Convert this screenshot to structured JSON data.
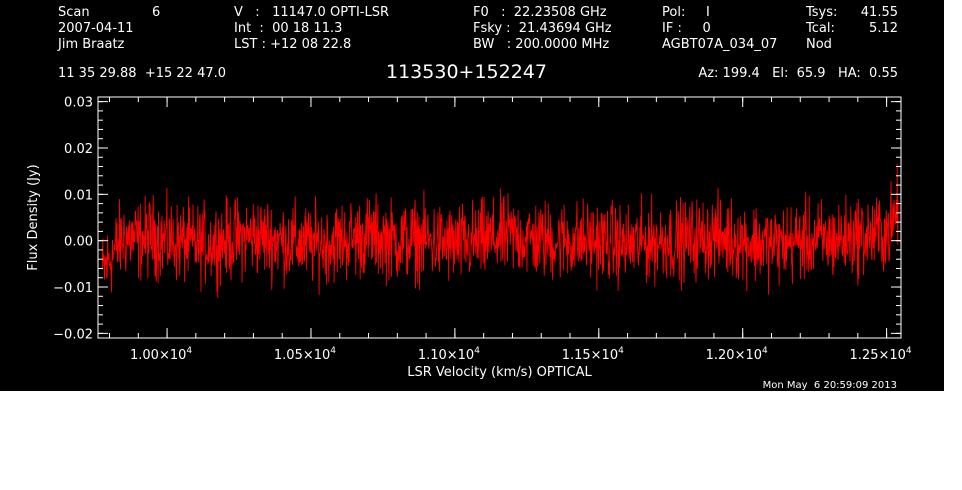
{
  "header": {
    "scan_label": "Scan",
    "scan_value": "6",
    "date": "2007-04-11",
    "observer": "Jim Braatz",
    "velocity": "V   :   11147.0 OPTI-LSR",
    "int_time": "Int  :  00 18 11.3",
    "lst": "LST : +12 08 22.8",
    "f0": "F0   :  22.23508 GHz",
    "fsky": "Fsky :  21.43694 GHz",
    "bw": "BW   : 200.0000 MHz",
    "pol": "Pol:     I",
    "if": "IF :     0",
    "project": "AGBT07A_034_07",
    "tsys_label": "Tsys:",
    "tsys_value": "41.55",
    "tcal_label": "Tcal:",
    "tcal_value": "5.12",
    "procedure": "Nod",
    "coords": "11 35 29.88  +15 22 47.0",
    "source": "113530+152247",
    "az_el_ha": "Az: 199.4   El:  65.9   HA:  0.55",
    "timestamp": "Mon May  6 20:59:09 2013"
  },
  "colors": {
    "background": "#000000",
    "axes": "#ffffff",
    "trace": "#ff0000"
  },
  "chart_data": {
    "type": "line",
    "xlabel": "LSR Velocity (km/s) OPTICAL",
    "ylabel": "Flux Density (Jy)",
    "xlim": [
      9760,
      12550
    ],
    "ylim": [
      -0.021,
      0.031
    ],
    "x_ticks": [
      {
        "value": 10000,
        "mantissa": "1.00",
        "exponent": "4"
      },
      {
        "value": 10500,
        "mantissa": "1.05",
        "exponent": "4"
      },
      {
        "value": 11000,
        "mantissa": "1.10",
        "exponent": "4"
      },
      {
        "value": 11500,
        "mantissa": "1.15",
        "exponent": "4"
      },
      {
        "value": 12000,
        "mantissa": "1.20",
        "exponent": "4"
      },
      {
        "value": 12500,
        "mantissa": "1.25",
        "exponent": "4"
      }
    ],
    "times_sign": "×10",
    "y_ticks": [
      {
        "value": -0.02,
        "label": "−0.02"
      },
      {
        "value": -0.01,
        "label": "−0.01"
      },
      {
        "value": 0.0,
        "label": "0.00"
      },
      {
        "value": 0.01,
        "label": "0.01"
      },
      {
        "value": 0.02,
        "label": "0.02"
      },
      {
        "value": 0.03,
        "label": "0.03"
      }
    ],
    "series": [
      {
        "color": "#ff0000",
        "x": [
          9775,
          9800,
          9850,
          9900,
          9950,
          10000,
          10100,
          10200,
          10300,
          10400,
          10500,
          10600,
          10700,
          10800,
          10900,
          11000,
          11100,
          11200,
          11300,
          11400,
          11500,
          11600,
          11700,
          11800,
          11900,
          12000,
          12100,
          12200,
          12300,
          12400,
          12450,
          12500,
          12525,
          12540
        ],
        "y": [
          -0.007,
          -0.004,
          0.001,
          0.0,
          0.001,
          0.0,
          -0.001,
          0.0,
          0.001,
          0.0,
          -0.001,
          0.0,
          0.001,
          0.0,
          0.0,
          -0.001,
          0.0,
          0.001,
          0.0,
          0.0,
          0.0,
          -0.001,
          0.0,
          0.0,
          0.001,
          0.0,
          -0.001,
          0.0,
          0.0,
          0.001,
          0.001,
          0.002,
          0.004,
          0.008
        ]
      }
    ]
  }
}
